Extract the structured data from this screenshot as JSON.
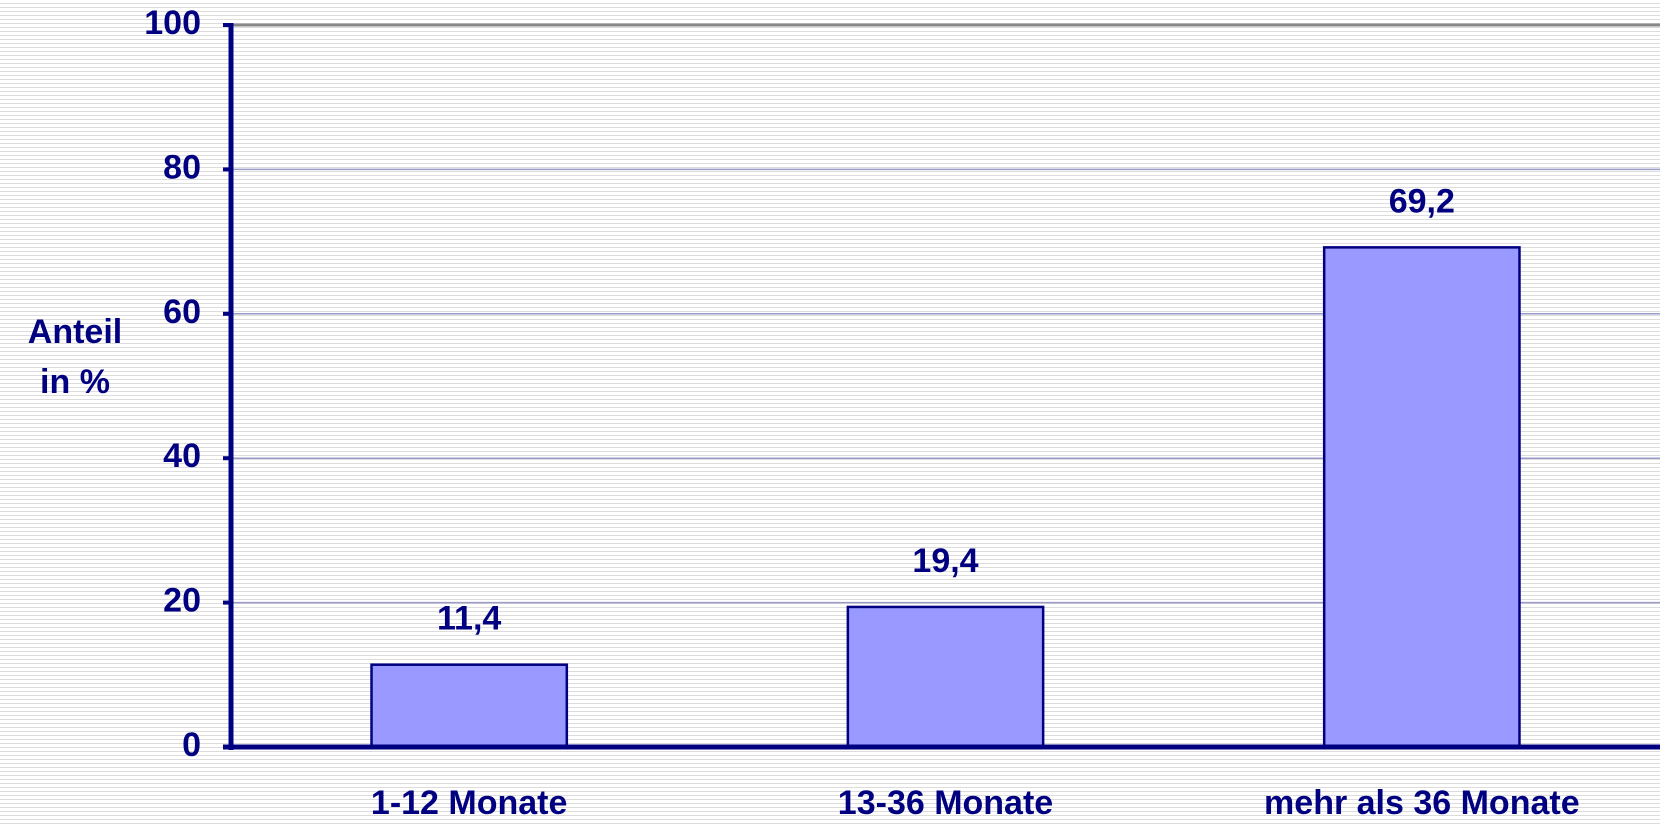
{
  "chart_data": {
    "type": "bar",
    "ylabel": [
      "Anteil",
      "in %"
    ],
    "categories": [
      "1-12 Monate",
      "13-36 Monate",
      "mehr als 36 Monate"
    ],
    "values": [
      11.4,
      19.4,
      69.2
    ],
    "value_labels": [
      "11,4",
      "19,4",
      "69,2"
    ],
    "color": "#9999ff",
    "ylim": [
      0,
      100
    ],
    "yticks": [
      0,
      20,
      40,
      60,
      80,
      100
    ],
    "grid": true
  }
}
